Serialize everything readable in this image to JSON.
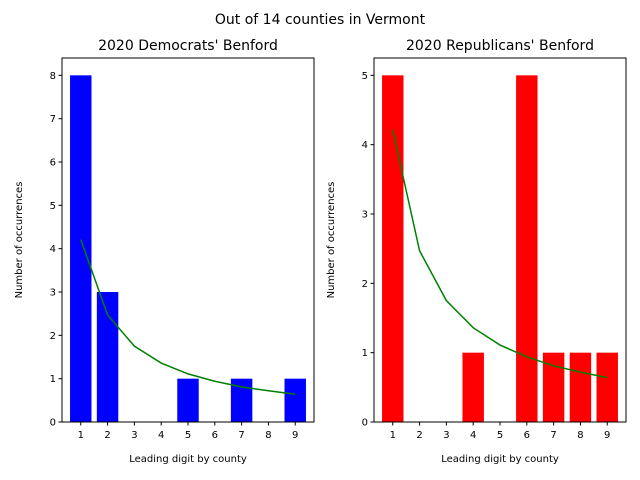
{
  "figure": {
    "title": "Out of 14 counties in Vermont"
  },
  "chart_data": [
    {
      "type": "bar",
      "title": "2020 Democrats' Benford",
      "xlabel": "Leading digit by county",
      "ylabel": "Number of occurrences",
      "categories": [
        1,
        2,
        3,
        4,
        5,
        6,
        7,
        8,
        9
      ],
      "values": [
        8,
        3,
        0,
        0,
        1,
        0,
        1,
        0,
        1
      ],
      "bar_color": "#0000ff",
      "expected": [
        4.21,
        2.47,
        1.75,
        1.36,
        1.11,
        0.94,
        0.81,
        0.72,
        0.64
      ],
      "expected_color": "#008000",
      "ylim": [
        0,
        8.4
      ],
      "xlim": [
        0.3,
        9.7
      ],
      "yticks": [
        0,
        1,
        2,
        3,
        4,
        5,
        6,
        7,
        8
      ],
      "grid": false
    },
    {
      "type": "bar",
      "title": "2020 Republicans' Benford",
      "xlabel": "Leading digit by county",
      "ylabel": "Number of occurrences",
      "categories": [
        1,
        2,
        3,
        4,
        5,
        6,
        7,
        8,
        9
      ],
      "values": [
        5,
        0,
        0,
        1,
        0,
        5,
        1,
        1,
        1
      ],
      "bar_color": "#ff0000",
      "expected": [
        4.21,
        2.47,
        1.75,
        1.36,
        1.11,
        0.94,
        0.81,
        0.72,
        0.64
      ],
      "expected_color": "#008000",
      "ylim": [
        0,
        5.25
      ],
      "xlim": [
        0.3,
        9.7
      ],
      "yticks": [
        0,
        1,
        2,
        3,
        4,
        5
      ],
      "grid": false
    }
  ]
}
